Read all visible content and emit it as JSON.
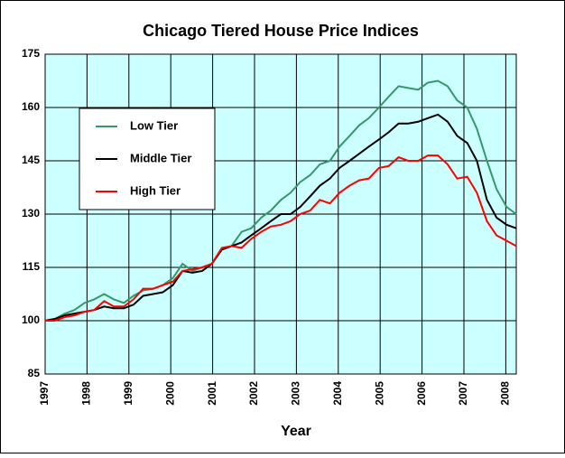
{
  "chart_data": {
    "type": "line",
    "title": "Chicago Tiered House Price Indices",
    "xlabel": "Year",
    "x": [
      1997,
      1997.23,
      1997.47,
      1997.7,
      1997.94,
      1998.17,
      1998.41,
      1998.64,
      1998.88,
      1999.11,
      1999.34,
      1999.58,
      1999.81,
      2000.05,
      2000.28,
      2000.52,
      2000.75,
      2000.98,
      2001.22,
      2001.45,
      2001.69,
      2001.92,
      2002.16,
      2002.39,
      2002.63,
      2002.86,
      2003.09,
      2003.33,
      2003.56,
      2003.8,
      2004.03,
      2004.27,
      2004.5,
      2004.73,
      2004.97,
      2005.2,
      2005.44,
      2005.67,
      2005.91,
      2006.14,
      2006.38,
      2006.61,
      2006.84,
      2007.08,
      2007.31,
      2007.55,
      2007.78,
      2008.02,
      2008.25
    ],
    "series": [
      {
        "name": "Low Tier",
        "color": "#339966",
        "values": [
          100,
          100.5,
          102,
          103,
          105,
          106,
          107.5,
          106,
          105,
          107,
          108.5,
          109,
          110,
          112,
          116,
          114,
          115,
          116,
          120,
          121,
          125,
          126,
          129,
          131,
          134,
          136,
          139,
          141,
          144,
          145,
          149,
          152,
          155,
          157,
          160,
          163,
          166,
          165.5,
          165,
          167,
          167.5,
          166,
          162,
          160,
          154,
          145,
          137,
          132,
          130
        ]
      },
      {
        "name": "Middle Tier",
        "color": "#000000",
        "values": [
          100,
          100.5,
          101.5,
          102,
          102.5,
          103,
          104,
          103.5,
          103.5,
          104.5,
          107,
          107.5,
          108,
          110,
          114,
          113.5,
          114,
          116,
          120,
          121,
          122,
          124,
          126,
          128,
          130,
          130,
          132,
          135,
          138,
          140,
          143,
          145,
          147,
          149,
          151,
          153,
          155.5,
          155.5,
          156,
          157,
          158,
          156,
          152,
          150,
          145,
          134,
          129,
          127,
          126
        ]
      },
      {
        "name": "High Tier",
        "color": "#ff0000",
        "values": [
          100,
          100,
          101,
          101.5,
          102.5,
          103,
          105.5,
          104,
          104,
          106,
          109,
          109,
          110,
          111,
          114,
          114.5,
          115,
          116,
          120.5,
          121,
          120.5,
          123,
          125,
          126.5,
          127,
          128,
          130,
          131,
          134,
          133,
          136,
          138,
          139.5,
          140,
          143,
          143.5,
          146,
          145,
          145,
          146.5,
          146.5,
          144,
          140,
          140.5,
          136,
          128,
          124,
          122.5,
          121
        ]
      }
    ],
    "xlim": [
      1997,
      2008.25
    ],
    "xticks": [
      1997,
      1998,
      1999,
      2000,
      2001,
      2002,
      2003,
      2004,
      2005,
      2006,
      2007,
      2008
    ],
    "ylim": [
      85,
      175
    ],
    "yticks": [
      85,
      100,
      115,
      130,
      145,
      160,
      175
    ],
    "grid": true,
    "legend": "upper left"
  }
}
